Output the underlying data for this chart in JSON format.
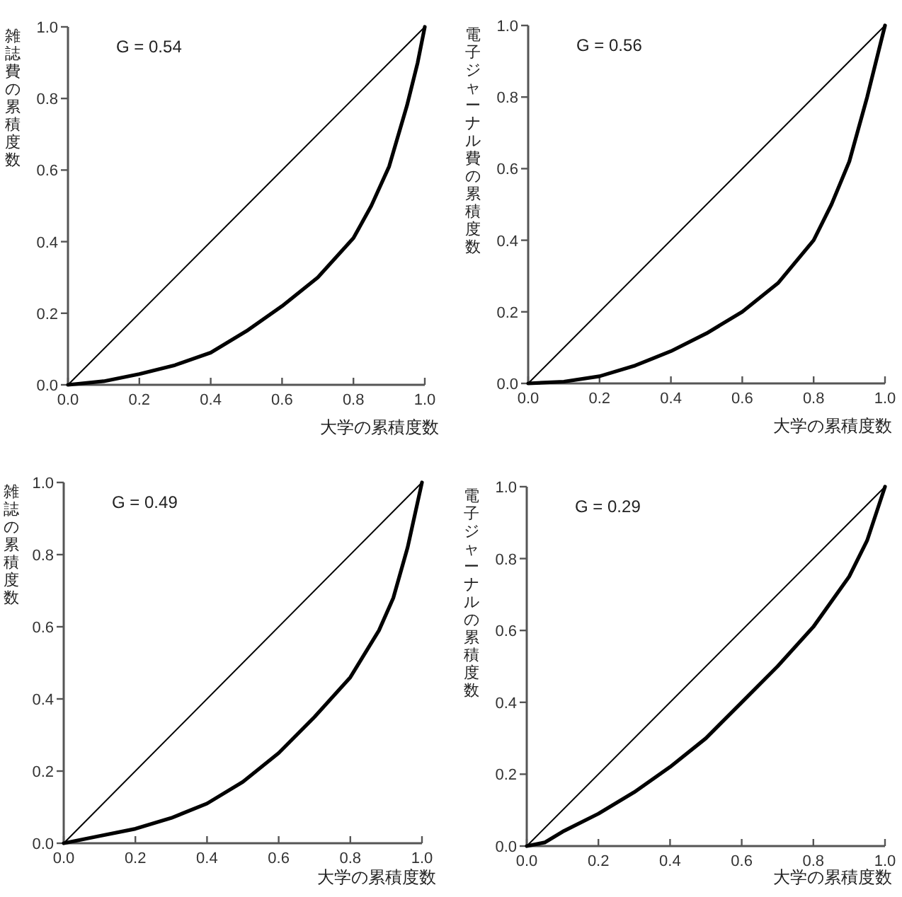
{
  "chart_data": [
    {
      "type": "line",
      "xlabel": "大学の累積度数",
      "ylabel": "雑誌費の累積度数",
      "annotations": [
        "G = 0.54"
      ],
      "xlim": [
        0,
        1
      ],
      "ylim": [
        0,
        1
      ],
      "xticks": [
        {
          "value": 0,
          "label": "0.0"
        },
        {
          "value": 0.2,
          "label": "0.2"
        },
        {
          "value": 0.4,
          "label": "0.4"
        },
        {
          "value": 0.6,
          "label": "0.6"
        },
        {
          "value": 0.8,
          "label": "0.8"
        },
        {
          "value": 1,
          "label": "1.0"
        }
      ],
      "yticks": [
        {
          "value": 0,
          "label": "0.0"
        },
        {
          "value": 0.2,
          "label": "0.2"
        },
        {
          "value": 0.4,
          "label": "0.4"
        },
        {
          "value": 0.6,
          "label": "0.6"
        },
        {
          "value": 0.8,
          "label": "0.8"
        },
        {
          "value": 1,
          "label": "1.0"
        }
      ],
      "series": [
        {
          "color": "#000000",
          "x": [
            0,
            1
          ],
          "values": [
            0,
            1
          ]
        },
        {
          "color": "#000000",
          "x": [
            0,
            0.1,
            0.2,
            0.3,
            0.4,
            0.5,
            0.6,
            0.7,
            0.8,
            0.85,
            0.9,
            0.95,
            0.98,
            1
          ],
          "values": [
            0,
            0.01,
            0.03,
            0.055,
            0.09,
            0.15,
            0.22,
            0.3,
            0.41,
            0.5,
            0.61,
            0.78,
            0.9,
            1
          ]
        }
      ]
    },
    {
      "type": "line",
      "xlabel": "大学の累積度数",
      "ylabel": "電子ジャーナル費の累積度数",
      "annotations": [
        "G = 0.56"
      ],
      "xlim": [
        0,
        1
      ],
      "ylim": [
        0,
        1
      ],
      "xticks": [
        {
          "value": 0,
          "label": "0.0"
        },
        {
          "value": 0.2,
          "label": "0.2"
        },
        {
          "value": 0.4,
          "label": "0.4"
        },
        {
          "value": 0.6,
          "label": "0.6"
        },
        {
          "value": 0.8,
          "label": "0.8"
        },
        {
          "value": 1,
          "label": "1.0"
        }
      ],
      "yticks": [
        {
          "value": 0,
          "label": "0.0"
        },
        {
          "value": 0.2,
          "label": "0.2"
        },
        {
          "value": 0.4,
          "label": "0.4"
        },
        {
          "value": 0.6,
          "label": "0.6"
        },
        {
          "value": 0.8,
          "label": "0.8"
        },
        {
          "value": 1,
          "label": "1.0"
        }
      ],
      "series": [
        {
          "color": "#000000",
          "x": [
            0,
            1
          ],
          "values": [
            0,
            1
          ]
        },
        {
          "color": "#000000",
          "x": [
            0,
            0.1,
            0.2,
            0.3,
            0.4,
            0.5,
            0.6,
            0.7,
            0.8,
            0.85,
            0.9,
            0.95,
            0.98,
            1
          ],
          "values": [
            0,
            0.005,
            0.02,
            0.05,
            0.09,
            0.14,
            0.2,
            0.28,
            0.4,
            0.5,
            0.62,
            0.8,
            0.92,
            1
          ]
        }
      ]
    },
    {
      "type": "line",
      "xlabel": "大学の累積度数",
      "ylabel": "雑誌の累積度数",
      "annotations": [
        "G = 0.49"
      ],
      "xlim": [
        0,
        1
      ],
      "ylim": [
        0,
        1
      ],
      "xticks": [
        {
          "value": 0,
          "label": "0.0"
        },
        {
          "value": 0.2,
          "label": "0.2"
        },
        {
          "value": 0.4,
          "label": "0.4"
        },
        {
          "value": 0.6,
          "label": "0.6"
        },
        {
          "value": 0.8,
          "label": "0.8"
        },
        {
          "value": 1,
          "label": "1.0"
        }
      ],
      "yticks": [
        {
          "value": 0,
          "label": "0.0"
        },
        {
          "value": 0.2,
          "label": "0.2"
        },
        {
          "value": 0.4,
          "label": "0.4"
        },
        {
          "value": 0.6,
          "label": "0.6"
        },
        {
          "value": 0.8,
          "label": "0.8"
        },
        {
          "value": 1,
          "label": "1.0"
        }
      ],
      "series": [
        {
          "color": "#000000",
          "x": [
            0,
            1
          ],
          "values": [
            0,
            1
          ]
        },
        {
          "color": "#000000",
          "x": [
            0,
            0.1,
            0.2,
            0.3,
            0.4,
            0.5,
            0.6,
            0.7,
            0.8,
            0.88,
            0.92,
            0.96,
            1
          ],
          "values": [
            0,
            0.02,
            0.04,
            0.07,
            0.11,
            0.17,
            0.25,
            0.35,
            0.46,
            0.59,
            0.68,
            0.82,
            1
          ]
        }
      ]
    },
    {
      "type": "line",
      "xlabel": "大学の累積度数",
      "ylabel": "電子ジャーナルの累積度数",
      "annotations": [
        "G = 0.29"
      ],
      "xlim": [
        0,
        1
      ],
      "ylim": [
        0,
        1
      ],
      "xticks": [
        {
          "value": 0,
          "label": "0.0"
        },
        {
          "value": 0.2,
          "label": "0.2"
        },
        {
          "value": 0.4,
          "label": "0.4"
        },
        {
          "value": 0.6,
          "label": "0.6"
        },
        {
          "value": 0.8,
          "label": "0.8"
        },
        {
          "value": 1,
          "label": "1.0"
        }
      ],
      "yticks": [
        {
          "value": 0,
          "label": "0.0"
        },
        {
          "value": 0.2,
          "label": "0.2"
        },
        {
          "value": 0.4,
          "label": "0.4"
        },
        {
          "value": 0.6,
          "label": "0.6"
        },
        {
          "value": 0.8,
          "label": "0.8"
        },
        {
          "value": 1,
          "label": "1.0"
        }
      ],
      "series": [
        {
          "color": "#000000",
          "x": [
            0,
            1
          ],
          "values": [
            0,
            1
          ]
        },
        {
          "color": "#000000",
          "x": [
            0,
            0.05,
            0.1,
            0.2,
            0.3,
            0.4,
            0.5,
            0.6,
            0.7,
            0.8,
            0.9,
            0.95,
            1
          ],
          "values": [
            0,
            0.01,
            0.04,
            0.09,
            0.15,
            0.22,
            0.3,
            0.4,
            0.5,
            0.61,
            0.75,
            0.85,
            1
          ]
        }
      ]
    }
  ]
}
